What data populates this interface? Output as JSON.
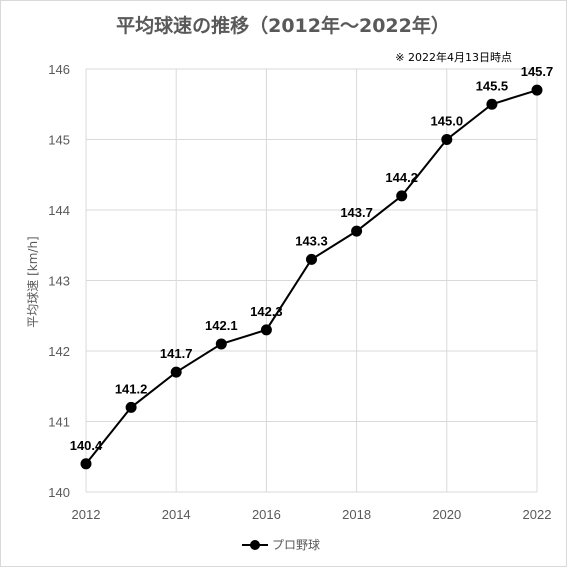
{
  "chart_data": {
    "type": "line",
    "title": "平均球速の推移（2012年～2022年）",
    "note": "※ 2022年4月13日時点",
    "ylabel": "平均球速 [km/h]",
    "xlabel": "",
    "x": [
      2012,
      2013,
      2014,
      2015,
      2016,
      2017,
      2018,
      2019,
      2020,
      2021,
      2022
    ],
    "series": [
      {
        "name": "プロ野球",
        "values": [
          140.4,
          141.2,
          141.7,
          142.1,
          142.3,
          143.3,
          143.7,
          144.2,
          145.0,
          145.5,
          145.7
        ],
        "labels": [
          "140.4",
          "141.2",
          "141.7",
          "142.1",
          "142.3",
          "143.3",
          "143.7",
          "144.2",
          "145.0",
          "145.5",
          "145.7"
        ]
      }
    ],
    "xlim": [
      2012,
      2022
    ],
    "ylim": [
      140,
      146
    ],
    "xticks": [
      "2012",
      "2014",
      "2016",
      "2018",
      "2020",
      "2022"
    ],
    "yticks": [
      "140",
      "141",
      "142",
      "143",
      "144",
      "145",
      "146"
    ],
    "grid": true,
    "legend": "bottom",
    "colors": {
      "line": "#000000",
      "grid": "#d9d9d9",
      "text": "#595959"
    }
  }
}
